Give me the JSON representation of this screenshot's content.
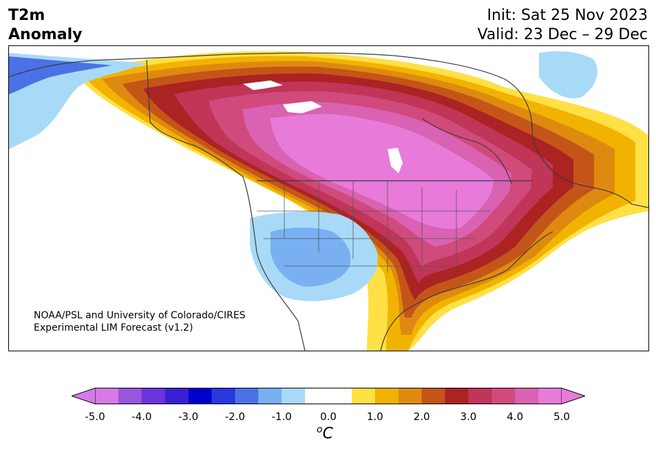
{
  "title": {
    "line1": "T2m",
    "line2": "Anomaly"
  },
  "dates": {
    "init": "Init: Sat 25 Nov 2023",
    "valid": "Valid: 23 Dec – 29 Dec"
  },
  "credit": {
    "line1": "NOAA/PSL and University of Colorado/CIRES",
    "line2": "Experimental LIM Forecast (v1.2)"
  },
  "colorbar": {
    "ticks": [
      "-5.0",
      "-4.0",
      "-3.0",
      "-2.0",
      "-1.0",
      "0.0",
      "1.0",
      "2.0",
      "3.0",
      "4.0",
      "5.0"
    ],
    "unit_base": "C",
    "unit_sup": "o",
    "colors": [
      "#d67ae6",
      "#9a55dd",
      "#6a35dd",
      "#3a20d2",
      "#0000cc",
      "#2838dd",
      "#4a72e6",
      "#78b0f2",
      "#a8daf8",
      "#ffffff",
      "#ffffff",
      "#ffe045",
      "#f2b300",
      "#de8a10",
      "#c45518",
      "#ab2323",
      "#c03558",
      "#d04a7c",
      "#d962b2",
      "#e87ada"
    ]
  }
}
